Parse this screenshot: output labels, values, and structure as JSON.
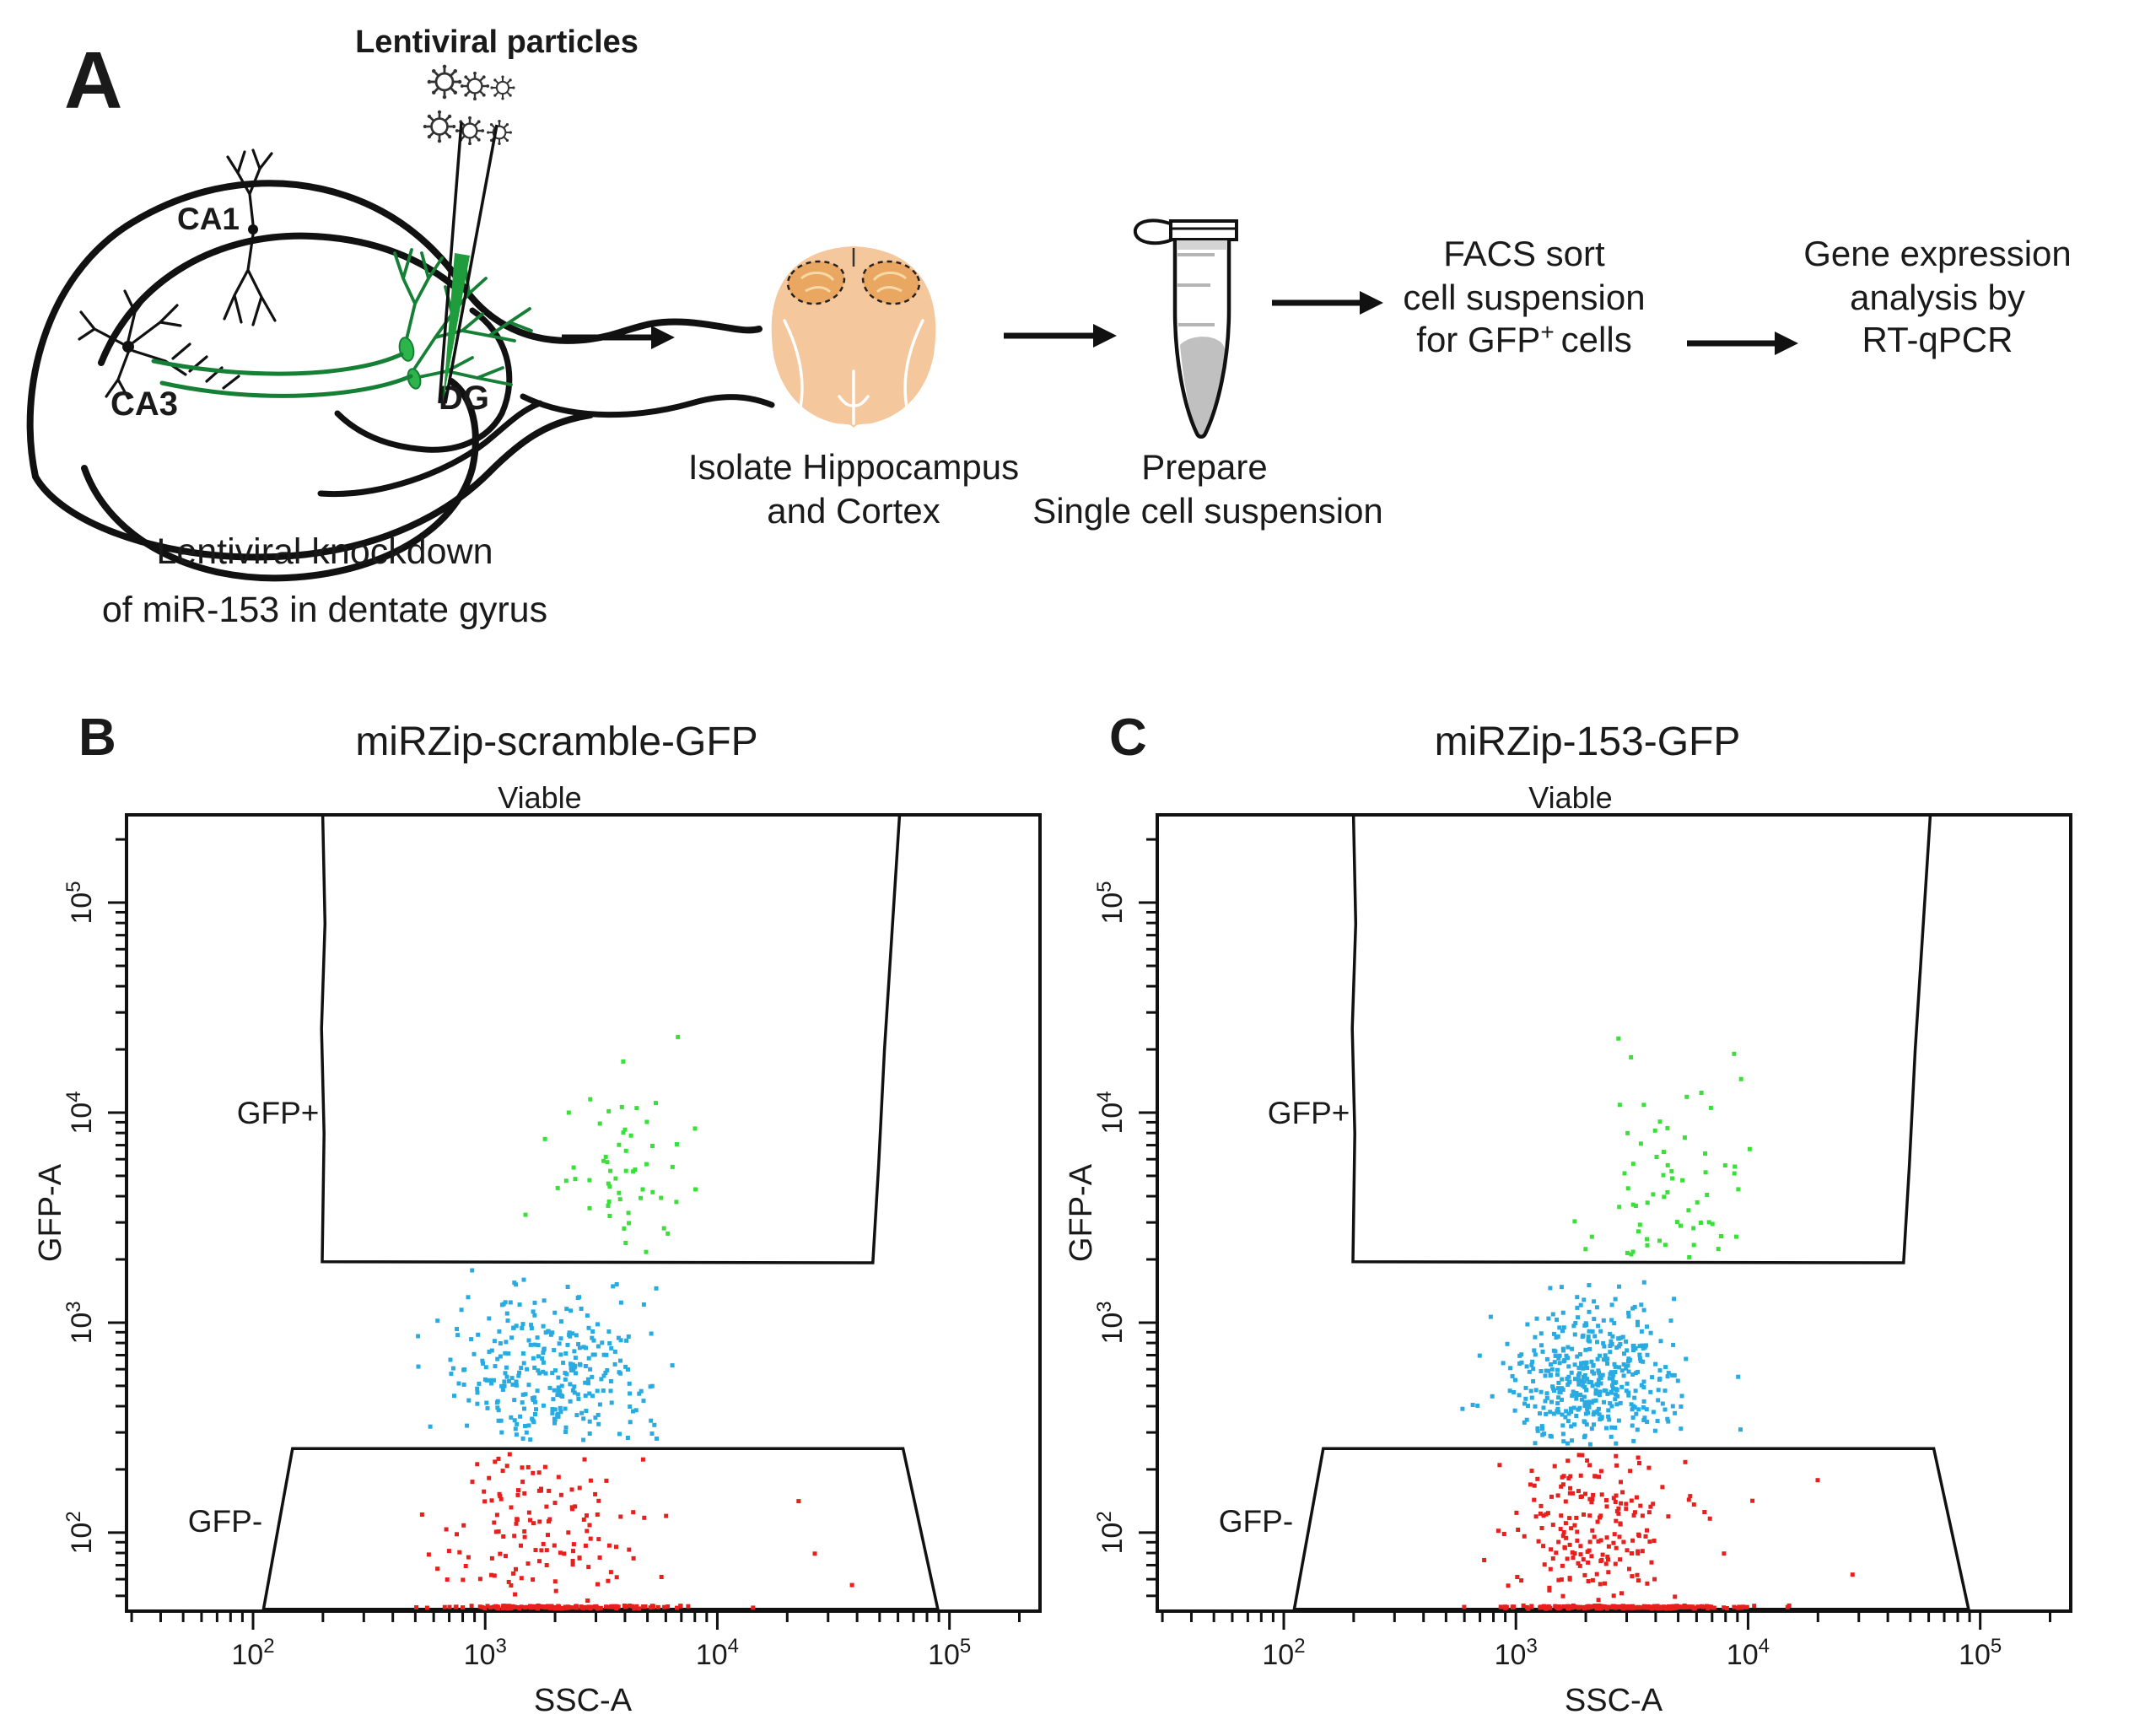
{
  "panel_a": {
    "label": "A",
    "virus_title": "Lentiviral particles",
    "region_labels": {
      "ca1": "CA1",
      "ca3": "CA3",
      "dg": "DG"
    },
    "caption_knockdown": [
      "Lentiviral knockdown",
      "of miR-153 in dentate gyrus"
    ],
    "caption_isolate": [
      "Isolate Hippocampus",
      "and Cortex"
    ],
    "caption_prepare": [
      "Prepare",
      "Single cell suspension"
    ],
    "facs_step": {
      "line1": "FACS sort",
      "line2": "cell suspension",
      "line3_pre": "for GFP",
      "line3_sup": "+",
      "line3_post": "cells"
    },
    "gene_step": [
      "Gene expression",
      "analysis by",
      "RT-qPCR"
    ]
  },
  "colors": {
    "text": "#1a1a1a",
    "line": "#111111",
    "gfp_positive_green": "#3adf3a",
    "intermediate_blue": "#29abe2",
    "gfp_negative_red": "#e8201d",
    "pipette_green": "#1f9d3c",
    "fiber_green": "#157f35",
    "brain_body": "#f5c79c",
    "hippocampus_region": "#eaa761",
    "tube_liquid": "#c0c0c0"
  },
  "chart_data": [
    {
      "type": "scatter",
      "panel_label": "B",
      "title": "miRZip-scramble-GFP",
      "parent_gate_label": "Viable",
      "xlabel": "SSC-A",
      "ylabel": "GFP-A",
      "x_scale": "log10",
      "y_scale": "log10",
      "x_log_range": [
        1.455,
        5.39
      ],
      "y_log_range": [
        1.626,
        5.418
      ],
      "x_tick_exponents": [
        2,
        3,
        4,
        5
      ],
      "y_tick_exponents": [
        2,
        3,
        4,
        5
      ],
      "grid": false,
      "seed": 20,
      "gates": [
        {
          "label": "GFP+",
          "label_anchor_log": [
            2.285,
            4.0
          ],
          "polygon_log": [
            [
              2.3,
              5.418
            ],
            [
              2.31,
              4.9
            ],
            [
              2.295,
              4.4
            ],
            [
              2.306,
              3.9
            ],
            [
              2.298,
              3.29
            ],
            [
              4.67,
              3.285
            ],
            [
              4.695,
              3.75
            ],
            [
              4.72,
              4.3
            ],
            [
              4.752,
              4.85
            ],
            [
              4.785,
              5.418
            ]
          ]
        },
        {
          "label": "GFP-",
          "label_anchor_log": [
            1.88,
            2.055
          ],
          "polygon_log": [
            [
              2.17,
              2.4
            ],
            [
              4.8,
              2.4
            ],
            [
              4.95,
              1.635
            ],
            [
              2.045,
              1.635
            ]
          ]
        }
      ],
      "clusters": [
        {
          "name": "gfp-positive-events",
          "color": "#3adf3a",
          "n": 55,
          "cx": 3.62,
          "cy": 3.62,
          "sx": 0.16,
          "sy": 0.27,
          "xmin": 3.15,
          "xmax": 4.1,
          "ymin": 3.31,
          "ymax": 4.45,
          "extra": [
            [
              3.83,
              4.36
            ]
          ]
        },
        {
          "name": "intermediate-events",
          "color": "#29abe2",
          "n": 300,
          "cx": 3.28,
          "cy": 2.76,
          "sx": 0.21,
          "sy": 0.19,
          "xmin": 2.62,
          "xmax": 4.05,
          "ymin": 2.42,
          "ymax": 3.27,
          "extra": []
        },
        {
          "name": "gfp-negative-events",
          "color": "#e8201d",
          "n": 130,
          "cx": 3.22,
          "cy": 2.05,
          "sx": 0.22,
          "sy": 0.21,
          "xmin": 2.72,
          "xmax": 4.15,
          "ymin": 1.67,
          "ymax": 2.385,
          "extra": [
            [
              4.58,
              1.75
            ],
            [
              4.35,
              2.15
            ],
            [
              4.42,
              1.9
            ]
          ]
        },
        {
          "name": "gfp-negative-baseline",
          "color": "#e8201d",
          "n": 150,
          "cx": 3.32,
          "cy": 1.645,
          "sx": 0.26,
          "sy": 0.004,
          "xmin": 2.7,
          "xmax": 4.6,
          "ymin": 1.637,
          "ymax": 1.653,
          "extra": []
        }
      ]
    },
    {
      "type": "scatter",
      "panel_label": "C",
      "title": "miRZip-153-GFP",
      "parent_gate_label": "Viable",
      "xlabel": "SSC-A",
      "ylabel": "GFP-A",
      "x_scale": "log10",
      "y_scale": "log10",
      "x_log_range": [
        1.455,
        5.39
      ],
      "y_log_range": [
        1.626,
        5.418
      ],
      "x_tick_exponents": [
        2,
        3,
        4,
        5
      ],
      "y_tick_exponents": [
        2,
        3,
        4,
        5
      ],
      "grid": false,
      "seed": 77,
      "gates": [
        {
          "label": "GFP+",
          "label_anchor_log": [
            2.285,
            4.0
          ],
          "polygon_log": [
            [
              2.3,
              5.418
            ],
            [
              2.31,
              4.9
            ],
            [
              2.295,
              4.4
            ],
            [
              2.306,
              3.9
            ],
            [
              2.298,
              3.29
            ],
            [
              4.67,
              3.285
            ],
            [
              4.695,
              3.75
            ],
            [
              4.72,
              4.3
            ],
            [
              4.752,
              4.85
            ],
            [
              4.785,
              5.418
            ]
          ]
        },
        {
          "label": "GFP-",
          "label_anchor_log": [
            1.88,
            2.055
          ],
          "polygon_log": [
            [
              2.17,
              2.4
            ],
            [
              4.8,
              2.4
            ],
            [
              4.95,
              1.635
            ],
            [
              2.045,
              1.635
            ]
          ]
        }
      ],
      "clusters": [
        {
          "name": "gfp-positive-events",
          "color": "#3adf3a",
          "n": 62,
          "cx": 3.67,
          "cy": 3.58,
          "sx": 0.16,
          "sy": 0.27,
          "xmin": 3.2,
          "xmax": 4.15,
          "ymin": 3.31,
          "ymax": 4.45,
          "extra": [
            [
              3.94,
              4.28
            ],
            [
              3.97,
              4.16
            ],
            [
              3.3,
              3.35
            ]
          ]
        },
        {
          "name": "intermediate-events",
          "color": "#29abe2",
          "n": 430,
          "cx": 3.33,
          "cy": 2.72,
          "sx": 0.18,
          "sy": 0.19,
          "xmin": 2.7,
          "xmax": 4.1,
          "ymin": 2.42,
          "ymax": 3.27,
          "extra": []
        },
        {
          "name": "gfp-negative-events",
          "color": "#e8201d",
          "n": 195,
          "cx": 3.35,
          "cy": 2.05,
          "sx": 0.2,
          "sy": 0.21,
          "xmin": 2.8,
          "xmax": 4.2,
          "ymin": 1.67,
          "ymax": 2.385,
          "extra": [
            [
              4.3,
              2.25
            ],
            [
              4.45,
              1.8
            ]
          ]
        },
        {
          "name": "gfp-negative-baseline",
          "color": "#e8201d",
          "n": 210,
          "cx": 3.45,
          "cy": 1.645,
          "sx": 0.27,
          "sy": 0.004,
          "xmin": 2.6,
          "xmax": 4.62,
          "ymin": 1.637,
          "ymax": 1.653,
          "extra": []
        }
      ]
    }
  ]
}
